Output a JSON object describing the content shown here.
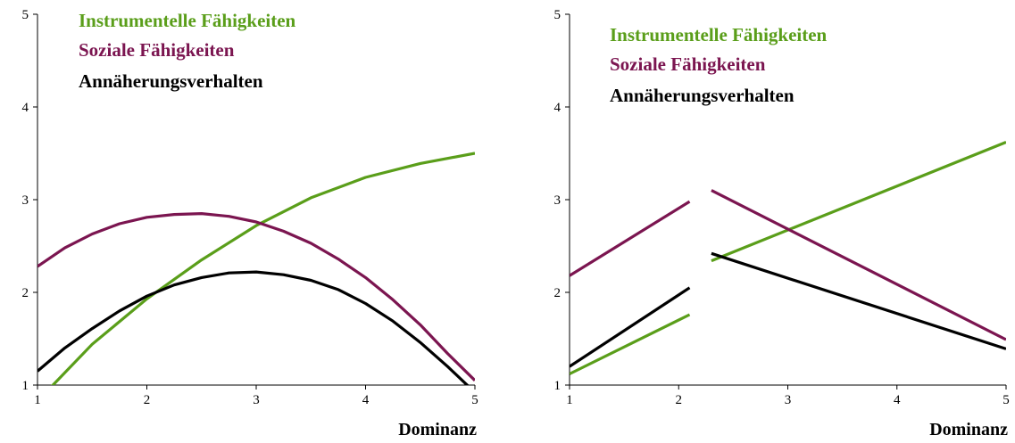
{
  "chart_data": [
    {
      "type": "line",
      "title": "",
      "xlabel": "Dominanz",
      "ylabel": "",
      "xlim": [
        1,
        5
      ],
      "ylim": [
        1,
        5
      ],
      "x_ticks": [
        "1",
        "2",
        "3",
        "4",
        "5"
      ],
      "y_ticks": [
        "1",
        "2",
        "3",
        "4",
        "5"
      ],
      "grid": false,
      "legend_position": "top-left",
      "series": [
        {
          "name": "Instrumentelle Fähigkeiten",
          "color": "#5a9e1a",
          "segments": [
            {
              "x": [
                1.1,
                1.5,
                2.0,
                2.5,
                3.0,
                3.5,
                4.0,
                4.5,
                5.0
              ],
              "y": [
                0.95,
                1.44,
                1.93,
                2.35,
                2.72,
                3.02,
                3.24,
                3.39,
                3.5
              ]
            }
          ]
        },
        {
          "name": "Soziale Fähigkeiten",
          "color": "#7b1550",
          "segments": [
            {
              "x": [
                1.0,
                1.25,
                1.5,
                1.75,
                2.0,
                2.25,
                2.5,
                2.75,
                3.0,
                3.25,
                3.5,
                3.75,
                4.0,
                4.25,
                4.5,
                4.75,
                5.0
              ],
              "y": [
                2.28,
                2.48,
                2.63,
                2.74,
                2.81,
                2.84,
                2.85,
                2.82,
                2.76,
                2.66,
                2.53,
                2.36,
                2.16,
                1.92,
                1.65,
                1.34,
                1.05
              ]
            }
          ]
        },
        {
          "name": "Annäherungsverhalten",
          "color": "#000000",
          "segments": [
            {
              "x": [
                1.0,
                1.25,
                1.5,
                1.75,
                2.0,
                2.25,
                2.5,
                2.75,
                3.0,
                3.25,
                3.5,
                3.75,
                4.0,
                4.25,
                4.5,
                4.75,
                5.0
              ],
              "y": [
                1.15,
                1.4,
                1.61,
                1.8,
                1.96,
                2.08,
                2.16,
                2.21,
                2.22,
                2.19,
                2.13,
                2.03,
                1.88,
                1.69,
                1.46,
                1.2,
                0.92
              ]
            }
          ]
        }
      ]
    },
    {
      "type": "line",
      "title": "",
      "xlabel": "Dominanz",
      "ylabel": "",
      "xlim": [
        1,
        5
      ],
      "ylim": [
        1,
        5
      ],
      "x_ticks": [
        "1",
        "2",
        "3",
        "4",
        "5"
      ],
      "y_ticks": [
        "1",
        "2",
        "3",
        "4",
        "5"
      ],
      "grid": false,
      "legend_position": "top-left",
      "series": [
        {
          "name": "Instrumentelle Fähigkeiten",
          "color": "#5a9e1a",
          "segments": [
            {
              "x": [
                1.0,
                2.1
              ],
              "y": [
                1.12,
                1.76
              ]
            },
            {
              "x": [
                2.3,
                5.0
              ],
              "y": [
                2.34,
                3.62
              ]
            }
          ]
        },
        {
          "name": "Soziale Fähigkeiten",
          "color": "#7b1550",
          "segments": [
            {
              "x": [
                1.0,
                2.1
              ],
              "y": [
                2.18,
                2.98
              ]
            },
            {
              "x": [
                2.3,
                5.0
              ],
              "y": [
                3.1,
                1.49
              ]
            }
          ]
        },
        {
          "name": "Annäherungsverhalten",
          "color": "#000000",
          "segments": [
            {
              "x": [
                1.0,
                2.1
              ],
              "y": [
                1.2,
                2.05
              ]
            },
            {
              "x": [
                2.3,
                5.0
              ],
              "y": [
                2.42,
                1.39
              ]
            }
          ]
        }
      ]
    }
  ]
}
